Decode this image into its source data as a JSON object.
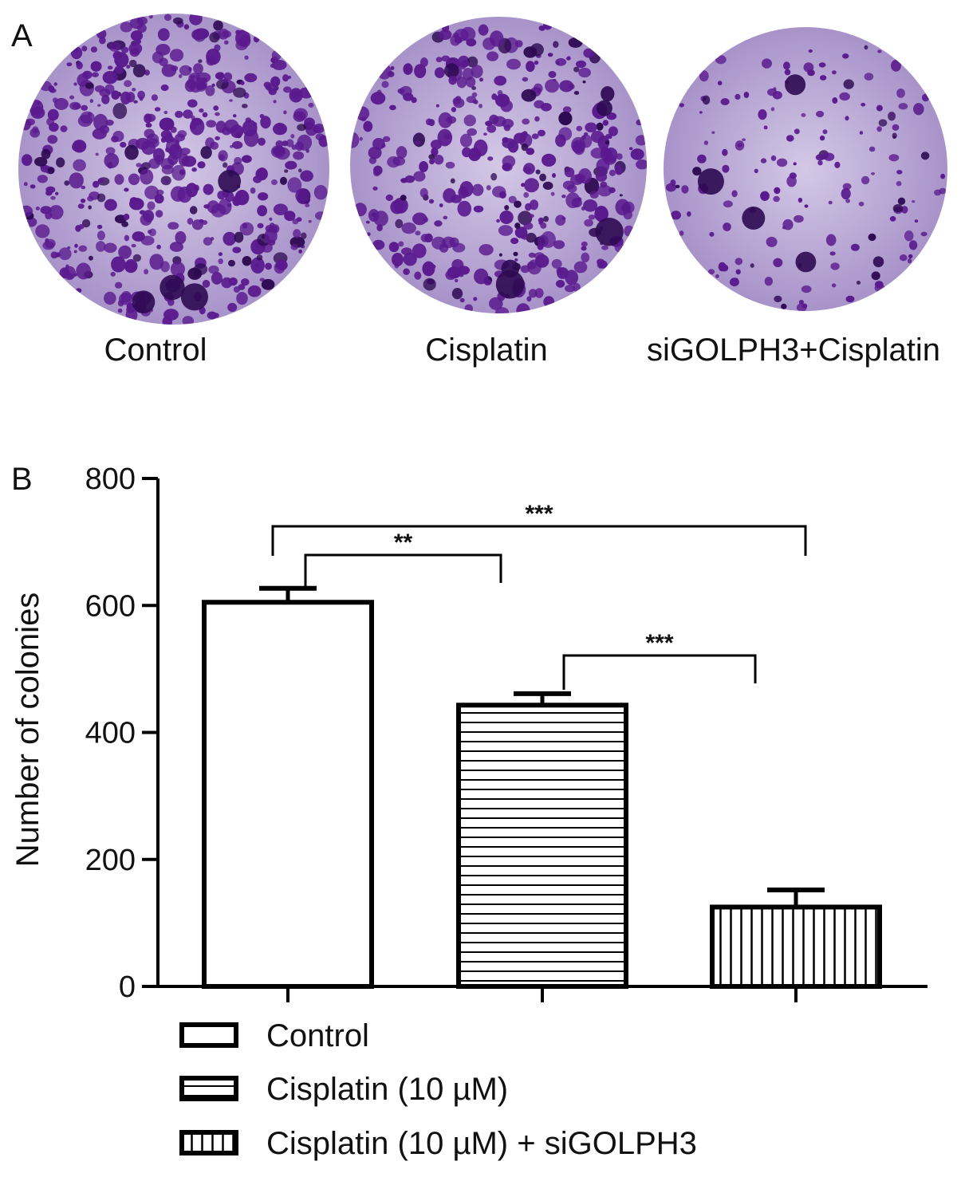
{
  "panel_a": {
    "letter": "A",
    "dishes": [
      {
        "label": "Control",
        "density": 1.0
      },
      {
        "label": "Cisplatin",
        "density": 0.74
      },
      {
        "label": "siGOLPH3+Cisplatin",
        "density": 0.3
      }
    ],
    "colors": {
      "background": "#b9a6d6",
      "colony": "#5a1a8e",
      "dark": "#2e0a52"
    }
  },
  "panel_b": {
    "letter": "B",
    "chart_data": {
      "type": "bar",
      "categories": [
        "Control",
        "Cisplatin (10 µM)",
        "Cisplatin (10 µM) + siGOLPH3"
      ],
      "values": [
        605,
        443,
        125
      ],
      "errors": [
        22,
        18,
        27
      ],
      "patterns": [
        "none",
        "horizontal",
        "vertical"
      ],
      "ylabel": "Number of colonies",
      "ylim": [
        0,
        800
      ],
      "yticks": [
        0,
        200,
        400,
        600,
        800
      ],
      "grid": false,
      "legend_placement": "bottom-left",
      "significance": [
        {
          "from": 0,
          "to": 1,
          "label": "**"
        },
        {
          "from": 0,
          "to": 2,
          "label": "***"
        },
        {
          "from": 1,
          "to": 2,
          "label": "***"
        }
      ]
    }
  }
}
